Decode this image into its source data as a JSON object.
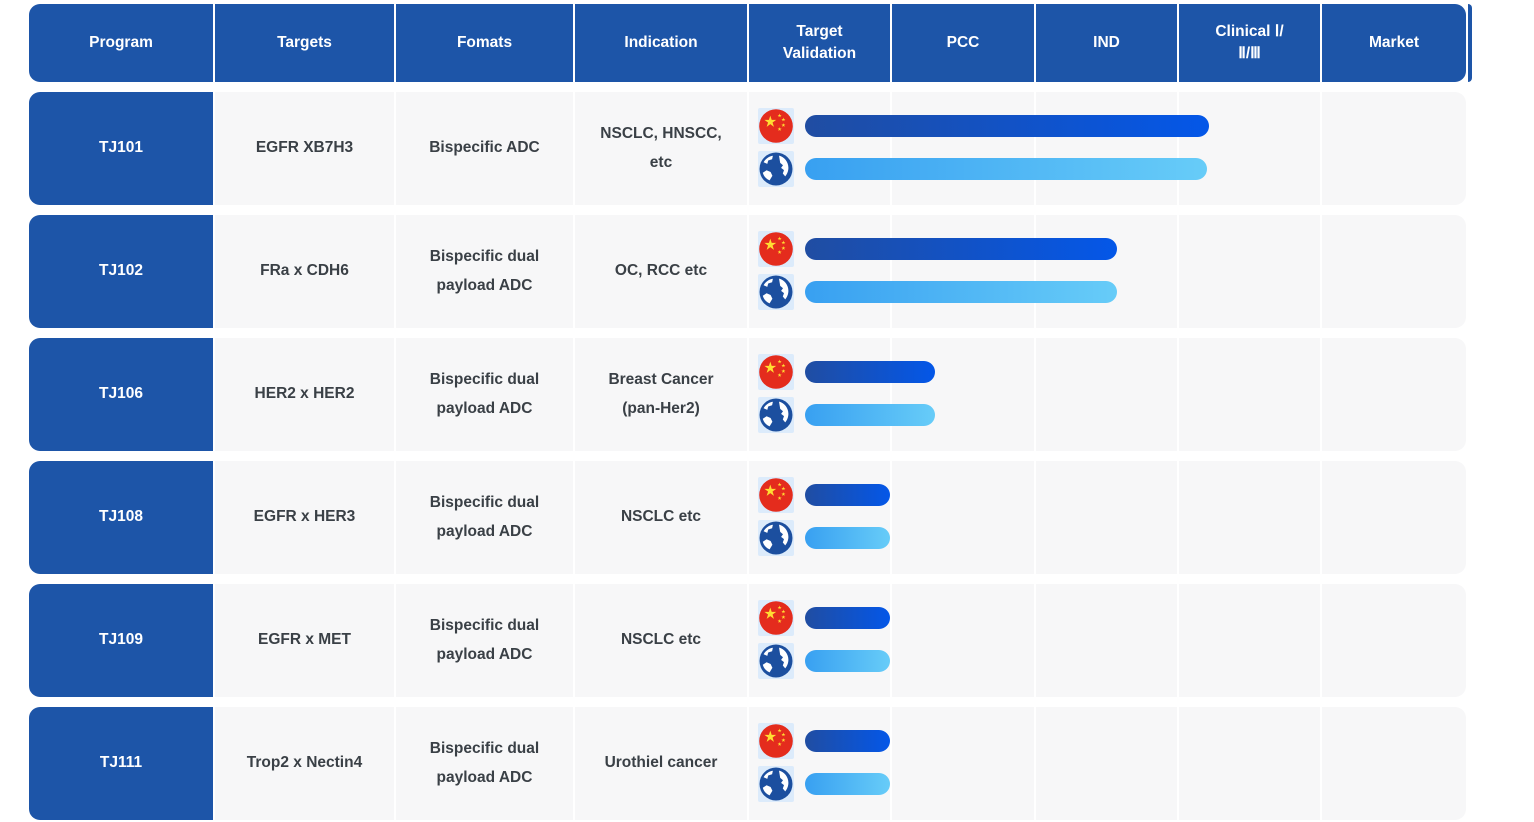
{
  "columns": [
    {
      "id": "program",
      "label": "Program"
    },
    {
      "id": "targets",
      "label": "Targets"
    },
    {
      "id": "formats",
      "label": "Fomats"
    },
    {
      "id": "indication",
      "label": "Indication"
    },
    {
      "id": "target-validation",
      "label": "Target\nValidation"
    },
    {
      "id": "pcc",
      "label": "PCC"
    },
    {
      "id": "ind",
      "label": "IND"
    },
    {
      "id": "clinical",
      "label": "Clinical Ⅰ/\nⅡ/Ⅲ"
    },
    {
      "id": "market",
      "label": "Market"
    }
  ],
  "rows": [
    {
      "program": "TJ101",
      "targets": "EGFR XB7H3",
      "format": "Bispecific ADC",
      "indication": "NSCLC, HNSCC,\netc",
      "cn_bar_width": 404,
      "global_bar_width": 402
    },
    {
      "program": "TJ102",
      "targets": "FRa x CDH6",
      "format": "Bispecific dual\npayload ADC",
      "indication": "OC, RCC etc",
      "cn_bar_width": 312,
      "global_bar_width": 312
    },
    {
      "program": "TJ106",
      "targets": "HER2 x HER2",
      "format": "Bispecific dual\npayload ADC",
      "indication": "Breast Cancer\n(pan-Her2)",
      "cn_bar_width": 130,
      "global_bar_width": 130
    },
    {
      "program": "TJ108",
      "targets": "EGFR x HER3",
      "format": "Bispecific dual\npayload ADC",
      "indication": "NSCLC etc",
      "cn_bar_width": 85,
      "global_bar_width": 85
    },
    {
      "program": "TJ109",
      "targets": "EGFR x MET",
      "format": "Bispecific dual\npayload ADC",
      "indication": "NSCLC etc",
      "cn_bar_width": 85,
      "global_bar_width": 85
    },
    {
      "program": "TJ111",
      "targets": "Trop2 x Nectin4",
      "format": "Bispecific dual\npayload ADC",
      "indication": "Urothiel cancer",
      "cn_bar_width": 85,
      "global_bar_width": 85
    }
  ],
  "icons": {
    "china_flag": "china-flag-icon",
    "globe": "globe-icon"
  },
  "colors": {
    "header_blue": "#1d55a8",
    "row_background": "#f7f7f8",
    "cn_bar_gradient": [
      "#204da2",
      "#0457e8"
    ],
    "global_bar_gradient": [
      "#38a0f1",
      "#67ccf8"
    ],
    "flag_red": "#e42c1d",
    "star_yellow": "#ffde33",
    "globe_blue": "#1c4f9f",
    "body_text": "#3a4046"
  },
  "chart_data": {
    "type": "bar",
    "title": "",
    "xlabel": "",
    "ylabel": "",
    "stage_axis": [
      "Target Validation",
      "PCC",
      "IND",
      "Clinical Ⅰ/Ⅱ/Ⅲ",
      "Market"
    ],
    "stage_axis_range": [
      0,
      5
    ],
    "categories": [
      "TJ101",
      "TJ102",
      "TJ106",
      "TJ108",
      "TJ109",
      "TJ111"
    ],
    "series": [
      {
        "name": "China",
        "progress_stage_units": [
          3.2,
          2.6,
          1.3,
          1.0,
          1.0,
          1.0
        ]
      },
      {
        "name": "Global",
        "progress_stage_units": [
          3.2,
          2.6,
          1.3,
          1.0,
          1.0,
          1.0
        ]
      }
    ],
    "legend_position": "none",
    "grid": false
  }
}
